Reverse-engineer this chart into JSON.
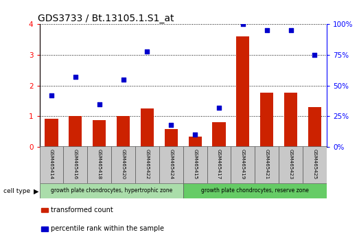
{
  "title": "GDS3733 / Bt.13105.1.S1_at",
  "samples": [
    "GSM465414",
    "GSM465416",
    "GSM465418",
    "GSM465420",
    "GSM465422",
    "GSM465424",
    "GSM465415",
    "GSM465417",
    "GSM465419",
    "GSM465421",
    "GSM465423",
    "GSM465425"
  ],
  "transformed_count": [
    0.92,
    1.0,
    0.88,
    1.0,
    1.25,
    0.58,
    0.35,
    0.8,
    3.6,
    1.78,
    1.78,
    1.3
  ],
  "percentile_rank": [
    42,
    57,
    35,
    55,
    78,
    18,
    10,
    32,
    100,
    95,
    95,
    75
  ],
  "bar_color": "#cc2200",
  "dot_color": "#0000cc",
  "group1_label": "growth plate chondrocytes, hypertrophic zone",
  "group2_label": "growth plate chondrocytes, reserve zone",
  "group1_indices": [
    0,
    1,
    2,
    3,
    4,
    5
  ],
  "group2_indices": [
    6,
    7,
    8,
    9,
    10,
    11
  ],
  "group1_color": "#aaddaa",
  "group2_color": "#66cc66",
  "cell_type_label": "cell type",
  "legend_bar_label": "transformed count",
  "legend_dot_label": "percentile rank within the sample",
  "ylim_left": [
    0,
    4
  ],
  "ylim_right": [
    0,
    100
  ],
  "yticks_left": [
    0,
    1,
    2,
    3,
    4
  ],
  "yticks_right": [
    0,
    25,
    50,
    75,
    100
  ],
  "background_color": "#ffffff"
}
